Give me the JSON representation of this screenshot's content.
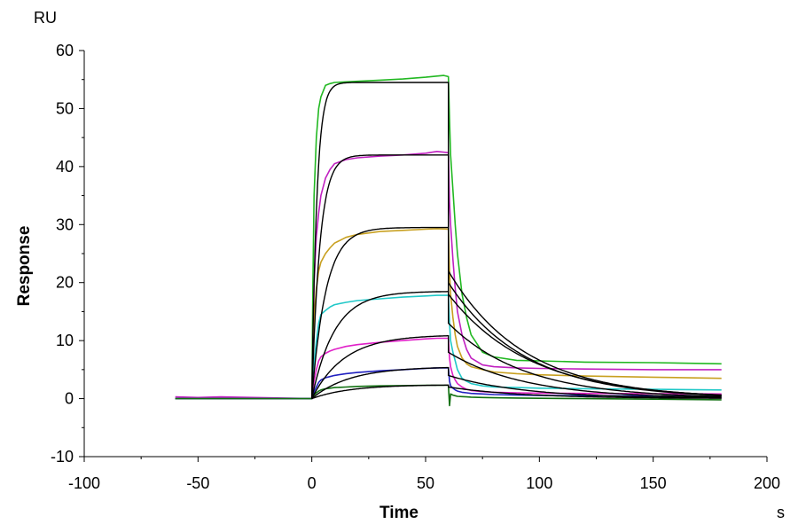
{
  "chart_data": {
    "type": "line",
    "title": "",
    "xlabel": "Time",
    "ylabel": "Response",
    "x_unit": "s",
    "y_unit": "RU",
    "xlim": [
      -100,
      200
    ],
    "ylim": [
      -10,
      60
    ],
    "x_ticks": [
      -100,
      -50,
      0,
      50,
      100,
      150,
      200
    ],
    "y_ticks": [
      -10,
      0,
      10,
      20,
      30,
      40,
      50,
      60
    ],
    "x_tick_labels": [
      "-100",
      "-50",
      "0",
      "50",
      "100",
      "150",
      "200"
    ],
    "y_tick_labels": [
      "-10",
      "0",
      "10",
      "20",
      "30",
      "40",
      "50",
      "60"
    ],
    "grid": false,
    "legend": "none",
    "series": [
      {
        "color": "#22b822",
        "x": [
          -60,
          0,
          0.5,
          1,
          2,
          3,
          4,
          6,
          8,
          10,
          15,
          20,
          30,
          40,
          50,
          55,
          58,
          60,
          60.5,
          61,
          62,
          63,
          64,
          66,
          68,
          70,
          75,
          80,
          90,
          100,
          120,
          150,
          180
        ],
        "y": [
          0,
          0,
          20,
          35,
          45,
          50,
          52,
          54,
          54.3,
          54.5,
          54.6,
          54.7,
          54.9,
          55.1,
          55.4,
          55.6,
          55.7,
          55.5,
          48,
          42,
          36,
          30,
          25,
          18,
          14,
          11,
          8,
          7.2,
          6.6,
          6.5,
          6.3,
          6.2,
          6
        ]
      },
      {
        "color": "#c020c0",
        "x": [
          -60,
          -50,
          -40,
          0,
          1,
          2,
          3,
          4,
          6,
          8,
          10,
          15,
          20,
          30,
          40,
          50,
          55,
          60,
          60.5,
          61,
          62,
          63,
          64,
          66,
          68,
          70,
          75,
          80,
          90,
          100,
          120,
          150,
          180
        ],
        "y": [
          0.3,
          0.2,
          0.3,
          0,
          20,
          28,
          32,
          35,
          38,
          39.5,
          40.5,
          41.2,
          41.5,
          41.8,
          42,
          42.3,
          42.6,
          42.4,
          34,
          30,
          24,
          19,
          15,
          11,
          8.5,
          7,
          5.8,
          5.5,
          5.3,
          5.2,
          5.1,
          5,
          5
        ]
      },
      {
        "color": "#c8a020",
        "x": [
          -60,
          0,
          1,
          2,
          3,
          4,
          6,
          8,
          10,
          15,
          20,
          30,
          40,
          50,
          55,
          60,
          60.5,
          61,
          62,
          63,
          64,
          66,
          68,
          70,
          75,
          80,
          90,
          100,
          120,
          150,
          180
        ],
        "y": [
          0,
          0,
          14,
          19,
          22,
          23.5,
          25,
          26,
          26.8,
          27.8,
          28.3,
          28.8,
          29,
          29.2,
          29.3,
          29.2,
          22,
          18,
          14,
          11,
          9,
          7,
          6,
          5.5,
          5,
          4.6,
          4.3,
          4.1,
          3.9,
          3.7,
          3.5
        ]
      },
      {
        "color": "#20c8c8",
        "x": [
          -60,
          0,
          1,
          2,
          3,
          4,
          6,
          8,
          10,
          15,
          20,
          30,
          40,
          50,
          55,
          60,
          60.5,
          61,
          62,
          63,
          64,
          66,
          68,
          70,
          75,
          80,
          90,
          100,
          120,
          150,
          180
        ],
        "y": [
          0,
          0,
          6,
          10,
          13,
          14.5,
          15.2,
          15.8,
          16.2,
          16.6,
          16.9,
          17.2,
          17.5,
          17.7,
          17.8,
          17.8,
          13,
          10,
          8,
          6.5,
          5,
          3.5,
          3,
          2.6,
          2.2,
          2,
          1.9,
          1.8,
          1.7,
          1.6,
          1.5
        ]
      },
      {
        "color": "#e020c8",
        "x": [
          -60,
          0,
          1,
          2,
          3,
          4,
          6,
          8,
          10,
          15,
          20,
          30,
          40,
          50,
          55,
          60,
          60.5,
          61,
          62,
          63,
          64,
          66,
          68,
          70,
          75,
          80,
          90,
          100,
          120,
          150,
          180
        ],
        "y": [
          0,
          0,
          3,
          5,
          6.5,
          7.2,
          7.8,
          8.2,
          8.5,
          9,
          9.3,
          9.7,
          10,
          10.3,
          10.4,
          10.4,
          7,
          5.5,
          4,
          3.2,
          2.6,
          2,
          1.6,
          1.4,
          1.2,
          1.1,
          1,
          0.95,
          0.9,
          0.85,
          0.8
        ]
      },
      {
        "color": "#2020c0",
        "x": [
          -60,
          0,
          1,
          2,
          3,
          4,
          6,
          8,
          10,
          15,
          20,
          30,
          40,
          50,
          55,
          60,
          60.5,
          61,
          62,
          63,
          64,
          66,
          68,
          70,
          75,
          80,
          90,
          100,
          120,
          150,
          180
        ],
        "y": [
          0,
          0,
          1.2,
          2,
          2.8,
          3.2,
          3.6,
          3.8,
          4,
          4.3,
          4.5,
          4.8,
          5,
          5.2,
          5.3,
          5.3,
          3,
          2.2,
          1.8,
          1.5,
          1.3,
          1.1,
          1,
          0.9,
          0.8,
          0.7,
          0.6,
          0.55,
          0.5,
          0.45,
          0.4
        ]
      },
      {
        "color": "#107010",
        "x": [
          -60,
          0,
          1,
          2,
          3,
          4,
          6,
          8,
          10,
          15,
          20,
          30,
          40,
          50,
          55,
          60,
          60.5,
          61,
          62,
          63,
          64,
          66,
          68,
          70,
          75,
          80,
          90,
          100,
          120,
          150,
          180
        ],
        "y": [
          0,
          0,
          0.6,
          1,
          1.3,
          1.5,
          1.7,
          1.8,
          1.9,
          2,
          2.1,
          2.2,
          2.25,
          2.3,
          2.3,
          2.3,
          -1.2,
          0.8,
          0.6,
          0.5,
          0.4,
          0.35,
          0.3,
          0.25,
          0.2,
          0.15,
          0.1,
          0.05,
          0,
          -0.1,
          -0.2
        ]
      }
    ],
    "fit_rmax": [
      54.5,
      42.0,
      29.5,
      18.5,
      11.0,
      5.5,
      2.4
    ],
    "fit_kon_obs": [
      0.45,
      0.28,
      0.16,
      0.1,
      0.07,
      0.06,
      0.06
    ],
    "fit_dissociation_start": [
      22,
      20,
      18,
      13,
      8,
      4,
      2
    ],
    "fit_koff": [
      0.03,
      0.03,
      0.028,
      0.03,
      0.03,
      0.03,
      0.03
    ],
    "fit_color": "#000000"
  }
}
